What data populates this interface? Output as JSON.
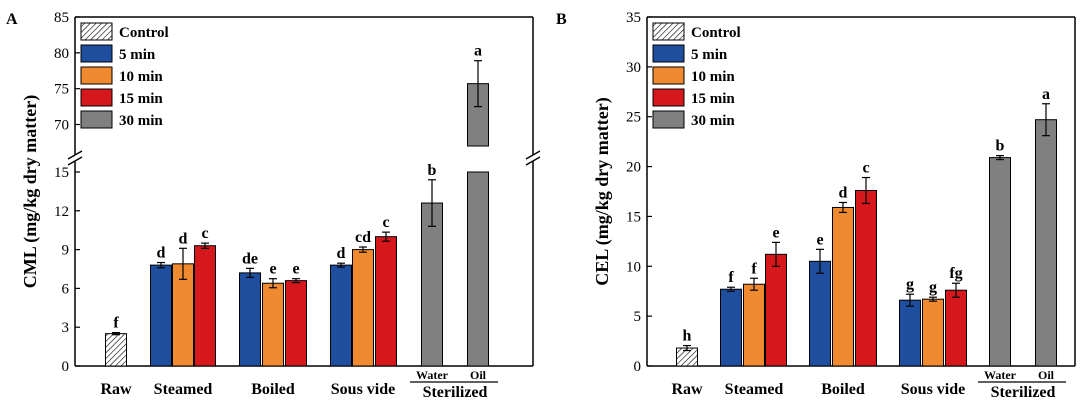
{
  "legend": [
    {
      "label": "Control",
      "fill": "hatch"
    },
    {
      "label": "5 min",
      "fill": "#1f4e9e"
    },
    {
      "label": "10 min",
      "fill": "#f08a30"
    },
    {
      "label": "15 min",
      "fill": "#d4181c"
    },
    {
      "label": "30 min",
      "fill": "#808080"
    }
  ],
  "colors": {
    "5": "#1f4e9e",
    "10": "#f08a30",
    "15": "#d4181c",
    "30": "#808080",
    "control": "hatch",
    "axis": "#000000"
  },
  "chart_data": [
    {
      "panel": "A",
      "type": "bar",
      "ylabel": "CML (mg/kg dry matter)",
      "y_lower_range": [
        0,
        15
      ],
      "y_upper_range": [
        67,
        85
      ],
      "y_break": true,
      "y_lower_ticks": [
        0,
        3,
        6,
        9,
        12,
        15
      ],
      "y_upper_ticks": [
        70,
        75,
        80,
        85
      ],
      "legend_labels": [
        "Control",
        "5 min",
        "10 min",
        "15 min",
        "30 min"
      ],
      "categories": [
        "Raw",
        "Steamed",
        "Boiled",
        "Sous vide",
        "Sterilized"
      ],
      "sub_categories": {
        "Sterilized": [
          "Water",
          "Oil"
        ]
      },
      "bars": [
        {
          "group": "Raw",
          "series": "Control",
          "value": 2.5,
          "error": 0.08,
          "letter": "f"
        },
        {
          "group": "Steamed",
          "series": "5 min",
          "value": 7.8,
          "error": 0.2,
          "letter": "d"
        },
        {
          "group": "Steamed",
          "series": "10 min",
          "value": 7.9,
          "error": 1.2,
          "letter": "d"
        },
        {
          "group": "Steamed",
          "series": "15 min",
          "value": 9.3,
          "error": 0.2,
          "letter": "c"
        },
        {
          "group": "Boiled",
          "series": "5 min",
          "value": 7.2,
          "error": 0.35,
          "letter": "de"
        },
        {
          "group": "Boiled",
          "series": "10 min",
          "value": 6.4,
          "error": 0.35,
          "letter": "e"
        },
        {
          "group": "Boiled",
          "series": "15 min",
          "value": 6.6,
          "error": 0.15,
          "letter": "e"
        },
        {
          "group": "Sous vide",
          "series": "5 min",
          "value": 7.8,
          "error": 0.15,
          "letter": "d"
        },
        {
          "group": "Sous vide",
          "series": "10 min",
          "value": 9.0,
          "error": 0.2,
          "letter": "cd"
        },
        {
          "group": "Sous vide",
          "series": "15 min",
          "value": 10.0,
          "error": 0.35,
          "letter": "c"
        },
        {
          "group": "Sterilized",
          "sub": "Water",
          "series": "30 min",
          "value": 12.6,
          "error": 1.8,
          "letter": "b"
        },
        {
          "group": "Sterilized",
          "sub": "Oil",
          "series": "30 min",
          "value": 75.7,
          "error": 3.2,
          "letter": "a"
        }
      ]
    },
    {
      "panel": "B",
      "type": "bar",
      "ylabel": "CEL (mg/kg dry matter)",
      "y_range": [
        0,
        35
      ],
      "y_ticks": [
        0,
        5,
        10,
        15,
        20,
        25,
        30,
        35
      ],
      "legend_labels": [
        "Control",
        "5 min",
        "10 min",
        "15 min",
        "30 min"
      ],
      "categories": [
        "Raw",
        "Steamed",
        "Boiled",
        "Sous vide",
        "Sterilized"
      ],
      "sub_categories": {
        "Sterilized": [
          "Water",
          "Oil"
        ]
      },
      "bars": [
        {
          "group": "Raw",
          "series": "Control",
          "value": 1.8,
          "error": 0.25,
          "letter": "h"
        },
        {
          "group": "Steamed",
          "series": "5 min",
          "value": 7.7,
          "error": 0.2,
          "letter": "f"
        },
        {
          "group": "Steamed",
          "series": "10 min",
          "value": 8.2,
          "error": 0.6,
          "letter": "f"
        },
        {
          "group": "Steamed",
          "series": "15 min",
          "value": 11.2,
          "error": 1.2,
          "letter": "e"
        },
        {
          "group": "Boiled",
          "series": "5 min",
          "value": 10.5,
          "error": 1.2,
          "letter": "e"
        },
        {
          "group": "Boiled",
          "series": "10 min",
          "value": 15.9,
          "error": 0.5,
          "letter": "d"
        },
        {
          "group": "Boiled",
          "series": "15 min",
          "value": 17.6,
          "error": 1.3,
          "letter": "c"
        },
        {
          "group": "Sous vide",
          "series": "5 min",
          "value": 6.6,
          "error": 0.6,
          "letter": "g"
        },
        {
          "group": "Sous vide",
          "series": "10 min",
          "value": 6.7,
          "error": 0.2,
          "letter": "g"
        },
        {
          "group": "Sous vide",
          "series": "15 min",
          "value": 7.6,
          "error": 0.7,
          "letter": "fg"
        },
        {
          "group": "Sterilized",
          "sub": "Water",
          "series": "30 min",
          "value": 20.9,
          "error": 0.2,
          "letter": "b"
        },
        {
          "group": "Sterilized",
          "sub": "Oil",
          "series": "30 min",
          "value": 24.7,
          "error": 1.6,
          "letter": "a"
        }
      ]
    }
  ]
}
